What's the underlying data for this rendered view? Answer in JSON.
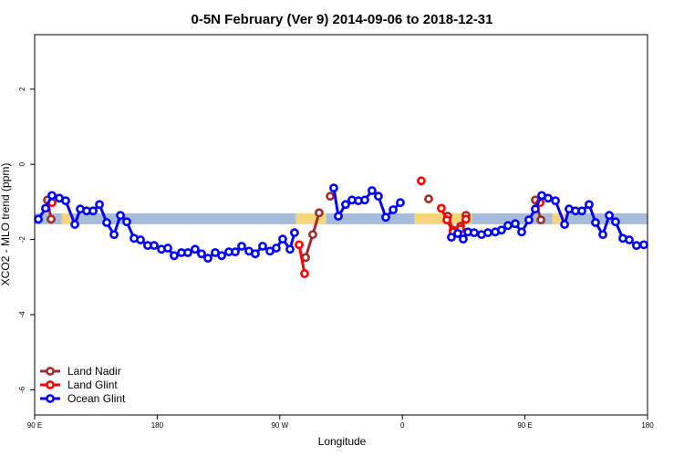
{
  "chart_data": {
    "type": "line",
    "title": "0-5N February (Ver 9)   2014-09-06 to 2018-12-31",
    "x_label": "Longitude",
    "y_label": "XCO2 - MLO trend (ppm)",
    "xlim": [
      90,
      540
    ],
    "ylim": [
      -6.67,
      3.45
    ],
    "xticks": [
      {
        "value": 90,
        "label": "90 E"
      },
      {
        "value": 180,
        "label": "180"
      },
      {
        "value": 270,
        "label": "90 W"
      },
      {
        "value": 360,
        "label": "0"
      },
      {
        "value": 450,
        "label": "90 E"
      },
      {
        "value": 540,
        "label": "180"
      }
    ],
    "yticks": [
      2,
      0,
      -2,
      -4,
      -6
    ],
    "legend_position": "bottom-left",
    "band": {
      "level": -1.45,
      "segments": [
        {
          "x": [
            90,
            110
          ],
          "color": "#a7bcda"
        },
        {
          "x": [
            110,
            117
          ],
          "color": "#f7d57d"
        },
        {
          "x": [
            117,
            282
          ],
          "color": "#a7bcda"
        },
        {
          "x": [
            282,
            304
          ],
          "color": "#f7d57d"
        },
        {
          "x": [
            304,
            369
          ],
          "color": "#a7bcda"
        },
        {
          "x": [
            369,
            411
          ],
          "color": "#f7d57d"
        },
        {
          "x": [
            411,
            470
          ],
          "color": "#a7bcda"
        },
        {
          "x": [
            470,
            480
          ],
          "color": "#f7d57d"
        },
        {
          "x": [
            480,
            540
          ],
          "color": "#a7bcda"
        }
      ]
    },
    "series": [
      {
        "name": "Land Nadir",
        "color": "#a52a2a",
        "x": [
          99.4,
          102.1,
          null,
          288.9,
          294.2,
          298.9,
          null,
          307.0,
          null,
          379.3,
          null,
          393.3,
          397.3,
          402.7,
          406.7,
          null,
          457.6,
          461.7
        ],
        "values": [
          -0.95,
          -1.46,
          null,
          -2.48,
          -1.87,
          -1.29,
          null,
          -0.85,
          null,
          -0.92,
          null,
          -1.38,
          -1.75,
          -1.65,
          -1.36,
          null,
          -0.95,
          -1.48
        ]
      },
      {
        "name": "Land Glint",
        "color": "#ff0000",
        "x": [
          102.7,
          null,
          284.2,
          288.2,
          null,
          373.9,
          null,
          388.6,
          392.7,
          397.3,
          402.7,
          406.7,
          null,
          461.1
        ],
        "values": [
          -1.02,
          null,
          -2.14,
          -2.91,
          null,
          -0.44,
          null,
          -1.17,
          -1.48,
          -1.8,
          -1.72,
          -1.46,
          null,
          -1.02
        ]
      },
      {
        "name": "Ocean Glint",
        "color": "#0000ff",
        "x": [
          92.7,
          98.0,
          102.7,
          108.1,
          112.8,
          119.5,
          123.5,
          128.2,
          132.9,
          137.6,
          142.9,
          148.3,
          153.0,
          157.6,
          163.0,
          167.7,
          173.0,
          177.7,
          183.1,
          187.8,
          192.4,
          197.8,
          202.5,
          207.8,
          212.5,
          217.2,
          222.6,
          227.3,
          232.6,
          237.3,
          242.0,
          247.4,
          252.0,
          257.4,
          262.8,
          267.4,
          272.1,
          277.5,
          280.8,
          null,
          309.6,
          313.0,
          318.3,
          323.0,
          327.7,
          332.4,
          337.7,
          342.4,
          347.8,
          353.2,
          358.5,
          null,
          396.0,
          400.7,
          404.7,
          408.1,
          412.7,
          418.1,
          422.8,
          428.2,
          432.8,
          437.5,
          442.9,
          447.6,
          452.9,
          457.6,
          462.3,
          467.0,
          472.4,
          479.1,
          482.4,
          487.1,
          491.8,
          497.1,
          501.8,
          507.2,
          511.9,
          516.5,
          521.9,
          526.6,
          531.9,
          537.3
        ],
        "values": [
          -1.46,
          -1.17,
          -0.83,
          -0.9,
          -0.97,
          -1.6,
          -1.19,
          -1.24,
          -1.24,
          -1.07,
          -1.55,
          -1.87,
          -1.36,
          -1.53,
          -1.97,
          -2.01,
          -2.16,
          -2.16,
          -2.26,
          -2.23,
          -2.43,
          -2.35,
          -2.35,
          -2.26,
          -2.38,
          -2.5,
          -2.35,
          -2.43,
          -2.33,
          -2.33,
          -2.18,
          -2.31,
          -2.38,
          -2.18,
          -2.31,
          -2.23,
          -1.99,
          -2.26,
          -1.82,
          null,
          -0.63,
          -1.38,
          -1.07,
          -0.95,
          -0.97,
          -0.95,
          -0.7,
          -0.85,
          -1.41,
          -1.21,
          -1.02,
          null,
          -1.94,
          -1.84,
          -1.99,
          -1.8,
          -1.82,
          -1.87,
          -1.82,
          -1.8,
          -1.75,
          -1.63,
          -1.58,
          -1.8,
          -1.48,
          -1.19,
          -0.83,
          -0.9,
          -0.97,
          -1.6,
          -1.19,
          -1.24,
          -1.24,
          -1.07,
          -1.55,
          -1.87,
          -1.36,
          -1.53,
          -1.97,
          -2.01,
          -2.16,
          -2.14
        ]
      }
    ]
  }
}
